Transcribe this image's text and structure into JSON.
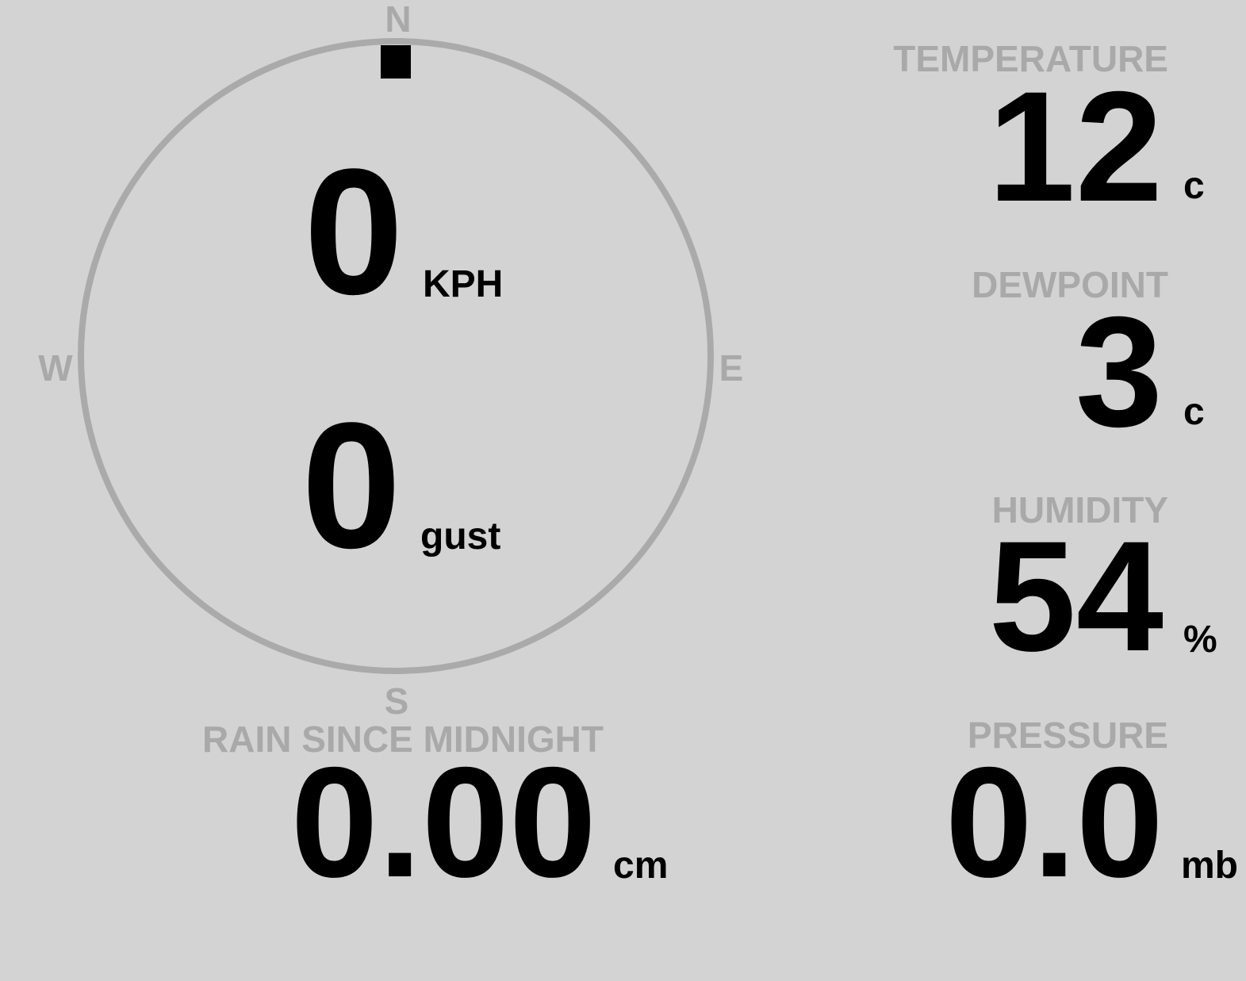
{
  "compass": {
    "north": "N",
    "east": "E",
    "south": "S",
    "west": "W"
  },
  "wind": {
    "speed": "0",
    "speed_unit": "KPH",
    "gust": "0",
    "gust_unit": "gust"
  },
  "rain": {
    "label": "RAIN SINCE MIDNIGHT",
    "value": "0.00",
    "unit": "cm"
  },
  "temperature": {
    "label": "TEMPERATURE",
    "value": "12",
    "unit": "c"
  },
  "dewpoint": {
    "label": "DEWPOINT",
    "value": "3",
    "unit": "c"
  },
  "humidity": {
    "label": "HUMIDITY",
    "value": "54",
    "unit": "%"
  },
  "pressure": {
    "label": "PRESSURE",
    "value": "0.0",
    "unit": "mb"
  }
}
